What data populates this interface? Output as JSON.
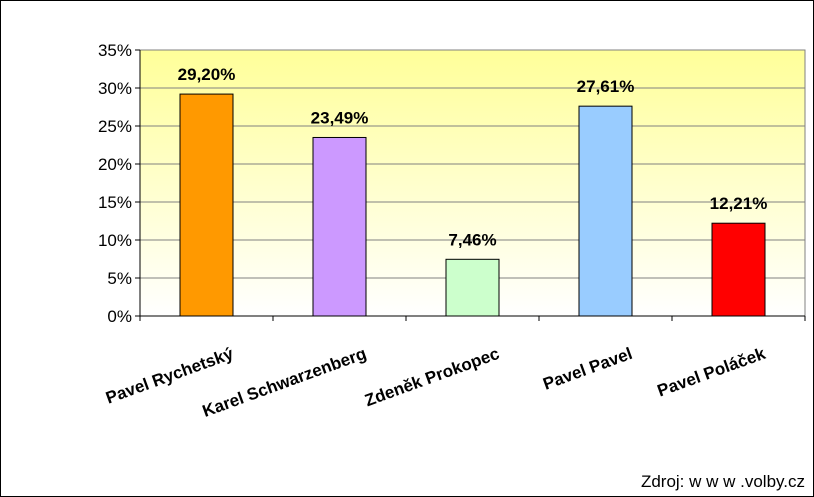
{
  "chart_data": {
    "type": "bar",
    "categories": [
      "Pavel Rychetský",
      "Karel Schwarzenberg",
      "Zdeněk Prokopec",
      "Pavel Pavel",
      "Pavel Poláček"
    ],
    "values": [
      29.2,
      23.49,
      7.46,
      27.61,
      12.21
    ],
    "value_labels": [
      "29,20%",
      "23,49%",
      "7,46%",
      "27,61%",
      "12,21%"
    ],
    "bar_colors": [
      "#FF9900",
      "#CC99FF",
      "#CCFFCC",
      "#99CCFF",
      "#FF0000"
    ],
    "ylim": [
      0,
      35
    ],
    "yticks": [
      0,
      5,
      10,
      15,
      20,
      25,
      30,
      35
    ],
    "ytick_labels": [
      "0%",
      "5%",
      "10%",
      "15%",
      "20%",
      "25%",
      "30%",
      "35%"
    ],
    "grid": true,
    "plot_background": [
      "#FFFF99",
      "#FFFFFF"
    ],
    "source": "Zdroj: w w w .volby.cz"
  }
}
